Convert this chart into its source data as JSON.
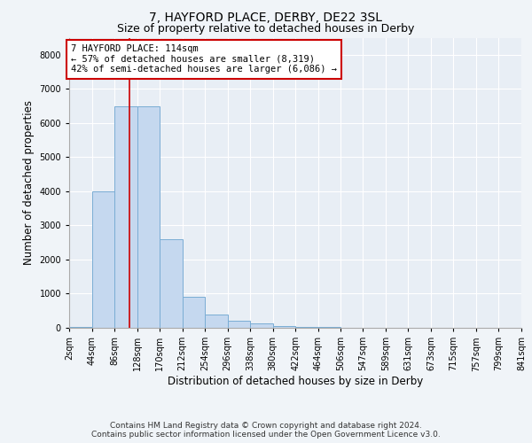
{
  "title": "7, HAYFORD PLACE, DERBY, DE22 3SL",
  "subtitle": "Size of property relative to detached houses in Derby",
  "xlabel": "Distribution of detached houses by size in Derby",
  "ylabel": "Number of detached properties",
  "footer_line1": "Contains HM Land Registry data © Crown copyright and database right 2024.",
  "footer_line2": "Contains public sector information licensed under the Open Government Licence v3.0.",
  "annotation_title": "7 HAYFORD PLACE: 114sqm",
  "annotation_line1": "← 57% of detached houses are smaller (8,319)",
  "annotation_line2": "42% of semi-detached houses are larger (6,086) →",
  "property_size": 114,
  "bin_edges": [
    2,
    44,
    86,
    128,
    170,
    212,
    254,
    296,
    338,
    380,
    422,
    464,
    506,
    547,
    589,
    631,
    673,
    715,
    757,
    799,
    841
  ],
  "bar_heights": [
    30,
    4000,
    6500,
    6500,
    2600,
    900,
    400,
    200,
    130,
    60,
    30,
    15,
    8,
    5,
    4,
    3,
    2,
    2,
    1,
    1
  ],
  "bar_color": "#c5d8ef",
  "bar_edge_color": "#7aadd4",
  "vline_color": "#cc0000",
  "vline_x": 114,
  "annotation_box_edge_color": "#cc0000",
  "annotation_box_face_color": "#ffffff",
  "background_color": "#f0f4f8",
  "plot_background_color": "#e8eef5",
  "ylim": [
    0,
    8500
  ],
  "yticks": [
    0,
    1000,
    2000,
    3000,
    4000,
    5000,
    6000,
    7000,
    8000
  ],
  "grid_color": "#ffffff",
  "title_fontsize": 10,
  "subtitle_fontsize": 9,
  "axis_label_fontsize": 8.5,
  "tick_fontsize": 7,
  "annotation_fontsize": 7.5,
  "footer_fontsize": 6.5
}
